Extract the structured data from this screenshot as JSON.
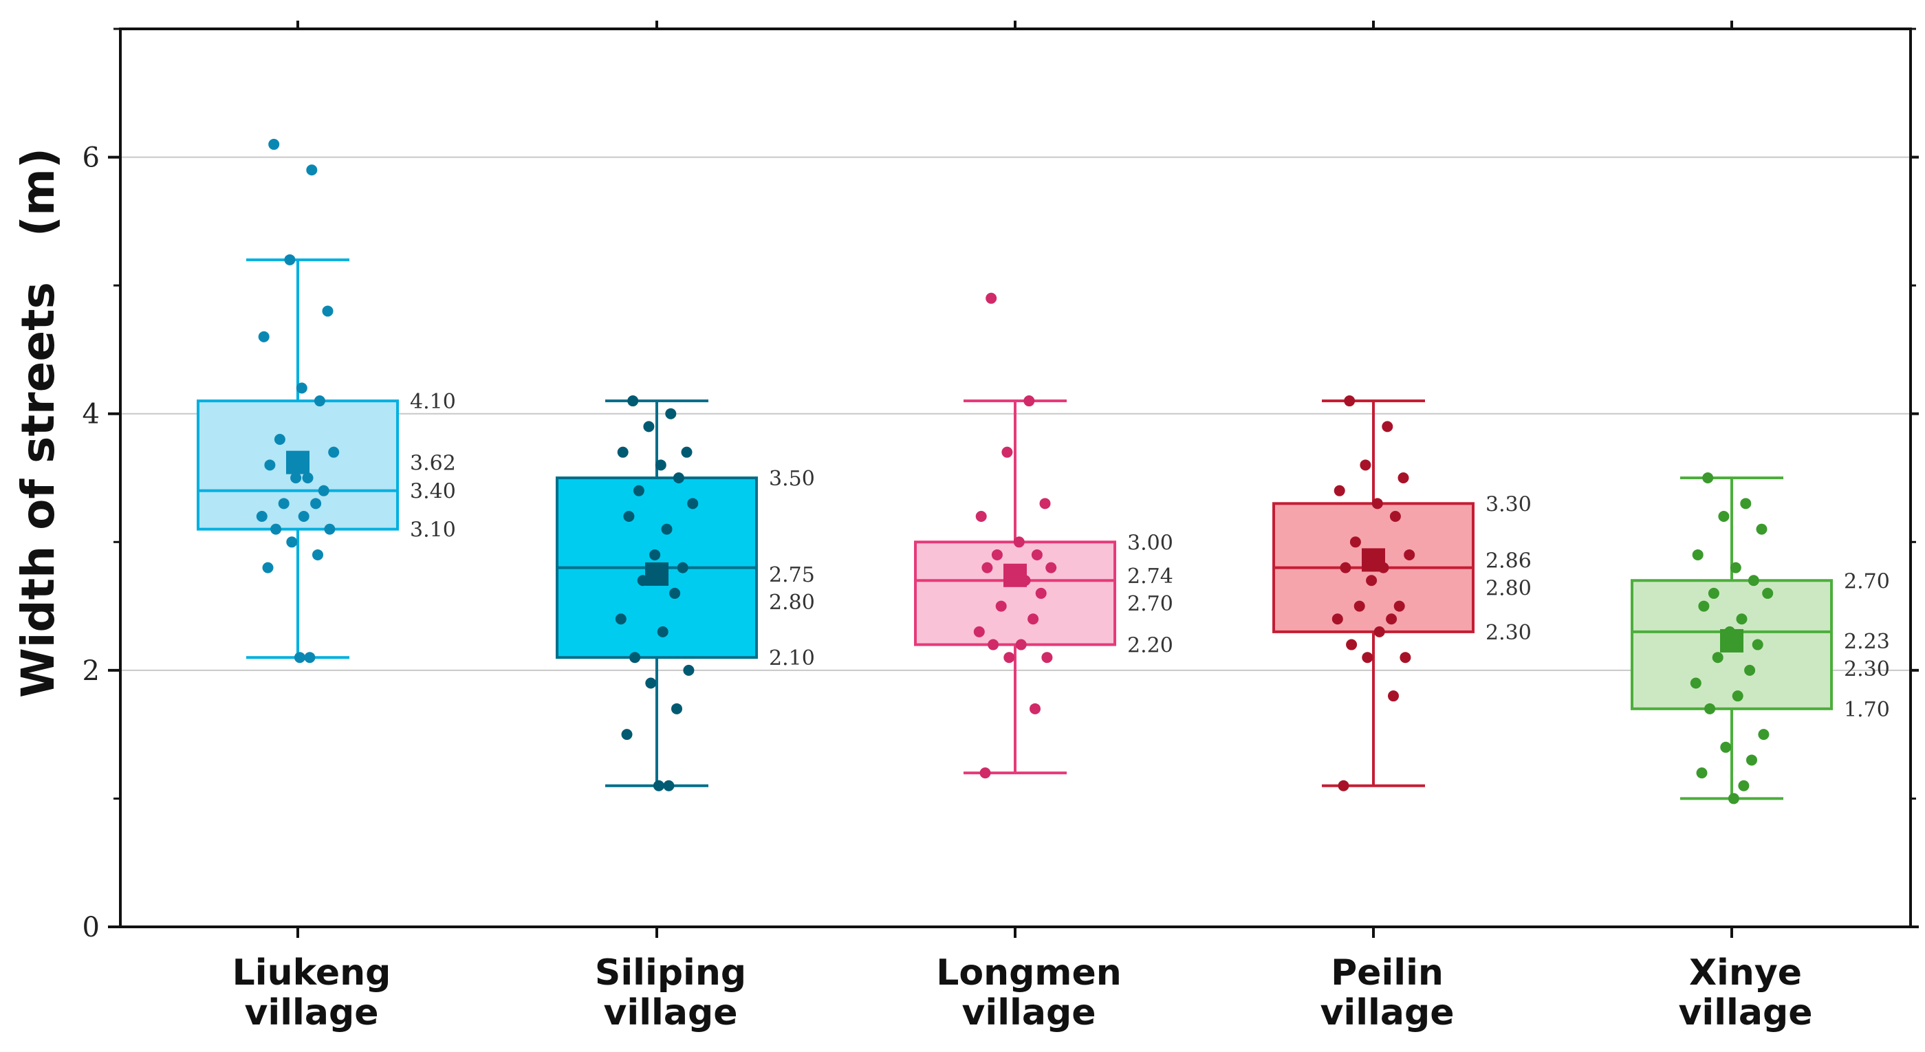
{
  "chart_data": {
    "type": "box",
    "ylabel": "Width of streets　(m)",
    "xlabel": "",
    "ylim": [
      0,
      7
    ],
    "yticks": [
      0,
      2,
      4,
      6
    ],
    "grid": true,
    "categories": [
      {
        "line1": "Liukeng",
        "line2": "village",
        "color": "#00b0e0",
        "fill": "#b3e6f6",
        "dark": "#0a88b4",
        "whisker_low": 2.1,
        "q1": 3.1,
        "median": 3.4,
        "mean": 3.62,
        "q3": 4.1,
        "whisker_high": 5.2,
        "labels": {
          "q3": "4.10",
          "mean": "3.62",
          "median": "3.40",
          "q1": "3.10"
        },
        "points": [
          6.1,
          5.9,
          5.2,
          4.8,
          4.6,
          4.2,
          4.1,
          3.8,
          3.7,
          3.6,
          3.5,
          3.5,
          3.4,
          3.3,
          3.3,
          3.2,
          3.2,
          3.1,
          3.1,
          3.0,
          2.9,
          2.8,
          2.1,
          2.1
        ]
      },
      {
        "line1": "Siliping",
        "line2": "village",
        "color": "#006f8a",
        "fill": "#00ccf0",
        "dark": "#005a72",
        "whisker_low": 1.1,
        "q1": 2.1,
        "median": 2.8,
        "mean": 2.75,
        "q3": 3.5,
        "whisker_high": 4.1,
        "labels": {
          "q3": "3.50",
          "median": "2.80",
          "mean": "2.75",
          "q1": "2.10"
        },
        "points": [
          4.1,
          4.0,
          3.9,
          3.7,
          3.7,
          3.6,
          3.5,
          3.4,
          3.3,
          3.2,
          3.1,
          2.9,
          2.8,
          2.7,
          2.6,
          2.4,
          2.3,
          2.1,
          2.0,
          1.9,
          1.7,
          1.5,
          1.1,
          1.1
        ]
      },
      {
        "line1": "Longmen",
        "line2": "village",
        "color": "#e63a7a",
        "fill": "#fac2d6",
        "dark": "#d02a68",
        "whisker_low": 1.2,
        "q1": 2.2,
        "median": 2.7,
        "mean": 2.74,
        "q3": 3.0,
        "whisker_high": 4.1,
        "labels": {
          "q3": "3.00",
          "mean": "2.74",
          "median": "2.70",
          "q1": "2.20"
        },
        "points": [
          4.9,
          4.1,
          3.7,
          3.3,
          3.2,
          3.0,
          2.9,
          2.9,
          2.8,
          2.8,
          2.7,
          2.7,
          2.6,
          2.5,
          2.4,
          2.3,
          2.2,
          2.2,
          2.1,
          2.1,
          1.7,
          1.2
        ]
      },
      {
        "line1": "Peilin",
        "line2": "village",
        "color": "#c41e34",
        "fill": "#f6a4ac",
        "dark": "#a81228",
        "whisker_low": 1.1,
        "q1": 2.3,
        "median": 2.8,
        "mean": 2.86,
        "q3": 3.3,
        "whisker_high": 4.1,
        "labels": {
          "q3": "3.30",
          "mean": "2.86",
          "median": "2.80",
          "q1": "2.30"
        },
        "points": [
          4.1,
          3.9,
          3.6,
          3.5,
          3.4,
          3.3,
          3.2,
          3.0,
          2.9,
          2.8,
          2.8,
          2.7,
          2.5,
          2.5,
          2.4,
          2.4,
          2.3,
          2.2,
          2.1,
          2.1,
          1.8,
          1.1
        ]
      },
      {
        "line1": "Xinye",
        "line2": "village",
        "color": "#4cae3c",
        "fill": "#cce8c2",
        "dark": "#3a9a2c",
        "whisker_low": 1.0,
        "q1": 1.7,
        "median": 2.3,
        "mean": 2.23,
        "q3": 2.7,
        "whisker_high": 3.5,
        "labels": {
          "q3": "2.70",
          "median": "2.30",
          "mean": "2.23",
          "q1": "1.70"
        },
        "points": [
          3.5,
          3.3,
          3.2,
          3.1,
          2.9,
          2.8,
          2.7,
          2.6,
          2.6,
          2.5,
          2.4,
          2.3,
          2.2,
          2.1,
          2.0,
          1.9,
          1.8,
          1.7,
          1.5,
          1.4,
          1.3,
          1.2,
          1.1,
          1.0
        ]
      }
    ]
  }
}
